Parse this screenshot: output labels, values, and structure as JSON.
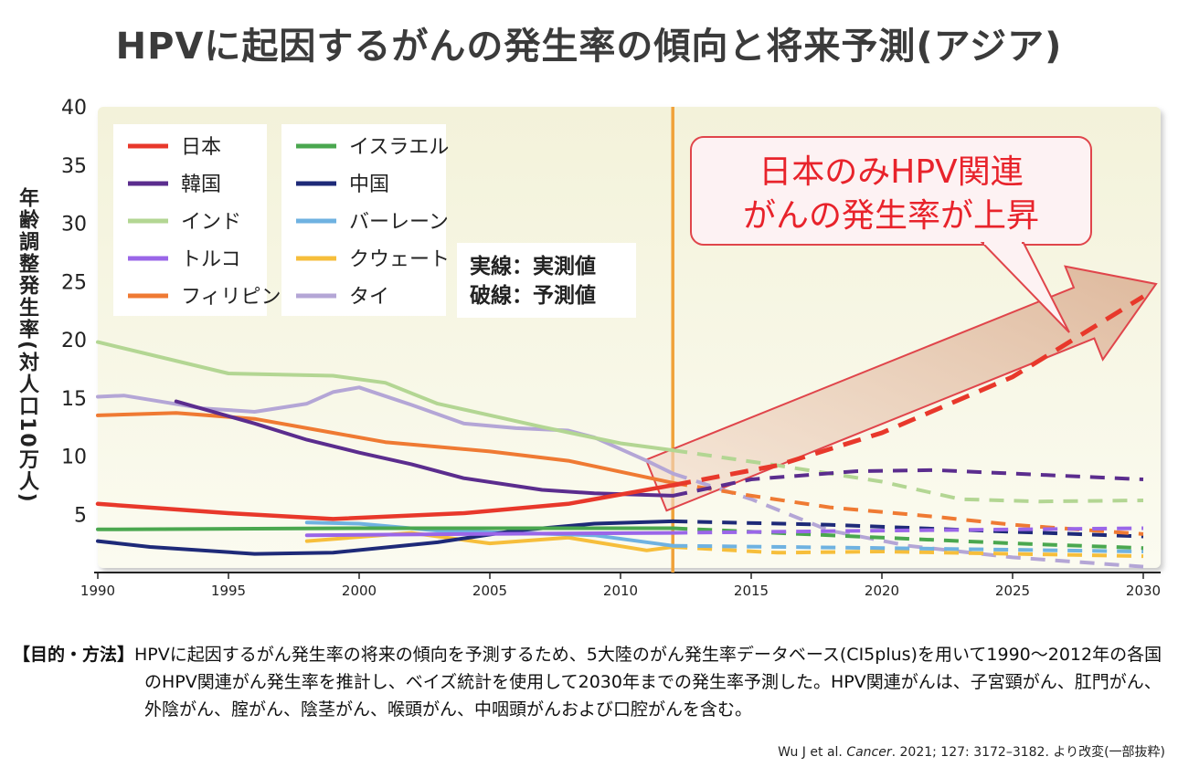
{
  "title": "HPVに起因するがんの発生率の傾向と将来予測(アジア)",
  "ylabel": "年齢調整発生率(対人口10万人)",
  "description": {
    "heading": "【目的・方法】",
    "text": "HPVに起因するがん発生率の将来の傾向を予測するため、5大陸のがん発生率データベース(CI5plus)を用いて1990～2012年の各国のHPV関連がん発生率を推計し、ベイズ統計を使用して2030年までの発生率予測した。HPV関連がんは、子宮頸がん、肛門がん、外陰がん、腟がん、陰茎がん、喉頭がん、中咽頭がんおよび口腔がんを含む。"
  },
  "citation": {
    "authors": "Wu J et al.",
    "journal": "Cancer",
    "rest": ". 2021; 127: 3172–3182. より改変(一部抜粋)"
  },
  "chart_data": {
    "type": "line",
    "xlim": [
      1990,
      2030
    ],
    "ylim": [
      0,
      40
    ],
    "x_ticks": [
      1990,
      1995,
      2000,
      2005,
      2010,
      2015,
      2020,
      2025,
      2030
    ],
    "y_ticks": [
      5,
      10,
      15,
      20,
      25,
      30,
      35,
      40
    ],
    "ylabel": "年齢調整発生率(対人口10万人)",
    "divider_year": 2012,
    "legend_note": [
      "実線：実測値",
      "破線：予測値"
    ],
    "annotation": {
      "text_line1": "日本のみHPV関連",
      "text_line2": "がんの発生率が上昇",
      "arrow_from": [
        2012,
        7.5
      ],
      "arrow_to": [
        2030,
        24
      ]
    },
    "series": [
      {
        "name": "日本",
        "color": "#e8382b",
        "observed": [
          [
            1990,
            5.9
          ],
          [
            1995,
            5.1
          ],
          [
            1999,
            4.6
          ],
          [
            2004,
            5.1
          ],
          [
            2008,
            5.9
          ],
          [
            2012,
            7.5
          ]
        ],
        "predicted": [
          [
            2012,
            7.5
          ],
          [
            2016,
            9.2
          ],
          [
            2020,
            12.0
          ],
          [
            2025,
            16.8
          ],
          [
            2030,
            23.7
          ]
        ]
      },
      {
        "name": "韓国",
        "color": "#5b2d8e",
        "observed": [
          [
            1993,
            14.7
          ],
          [
            1996,
            12.8
          ],
          [
            1998,
            11.4
          ],
          [
            2000,
            10.3
          ],
          [
            2002,
            9.3
          ],
          [
            2004,
            8.1
          ],
          [
            2007,
            7.1
          ],
          [
            2009,
            6.8
          ],
          [
            2012,
            6.6
          ]
        ],
        "predicted": [
          [
            2012,
            6.6
          ],
          [
            2015,
            8.0
          ],
          [
            2019,
            8.7
          ],
          [
            2022,
            8.8
          ],
          [
            2025,
            8.5
          ],
          [
            2030,
            8.0
          ]
        ]
      },
      {
        "name": "インド",
        "color": "#b3d693",
        "observed": [
          [
            1990,
            19.8
          ],
          [
            1995,
            17.1
          ],
          [
            1999,
            16.9
          ],
          [
            2001,
            16.3
          ],
          [
            2003,
            14.5
          ],
          [
            2007,
            12.5
          ],
          [
            2010,
            11.1
          ],
          [
            2012,
            10.5
          ]
        ],
        "predicted": [
          [
            2012,
            10.5
          ],
          [
            2016,
            9.2
          ],
          [
            2020,
            7.8
          ],
          [
            2023,
            6.3
          ],
          [
            2026,
            6.1
          ],
          [
            2030,
            6.2
          ]
        ]
      },
      {
        "name": "トルコ",
        "color": "#9a66e8",
        "observed": [
          [
            1998,
            3.2
          ],
          [
            2004,
            3.3
          ],
          [
            2012,
            3.4
          ]
        ],
        "predicted": [
          [
            2012,
            3.4
          ],
          [
            2020,
            3.6
          ],
          [
            2025,
            3.7
          ],
          [
            2030,
            3.8
          ]
        ]
      },
      {
        "name": "フィリピン",
        "color": "#ef7a33",
        "observed": [
          [
            1990,
            13.5
          ],
          [
            1993,
            13.7
          ],
          [
            1996,
            13.2
          ],
          [
            1999,
            12.0
          ],
          [
            2001,
            11.2
          ],
          [
            2005,
            10.4
          ],
          [
            2008,
            9.6
          ],
          [
            2012,
            7.7
          ]
        ],
        "predicted": [
          [
            2012,
            7.7
          ],
          [
            2015,
            6.6
          ],
          [
            2018,
            5.6
          ],
          [
            2022,
            4.8
          ],
          [
            2025,
            4.1
          ],
          [
            2030,
            3.3
          ]
        ]
      },
      {
        "name": "イスラエル",
        "color": "#4aa74f",
        "observed": [
          [
            1990,
            3.7
          ],
          [
            2000,
            3.8
          ],
          [
            2012,
            3.8
          ]
        ],
        "predicted": [
          [
            2012,
            3.8
          ],
          [
            2020,
            3.0
          ],
          [
            2025,
            2.5
          ],
          [
            2030,
            2.1
          ]
        ]
      },
      {
        "name": "中国",
        "color": "#1e2a78",
        "observed": [
          [
            1990,
            2.7
          ],
          [
            1992,
            2.2
          ],
          [
            1996,
            1.6
          ],
          [
            1999,
            1.7
          ],
          [
            2003,
            2.6
          ],
          [
            2006,
            3.6
          ],
          [
            2009,
            4.2
          ],
          [
            2012,
            4.4
          ]
        ],
        "predicted": [
          [
            2012,
            4.4
          ],
          [
            2018,
            4.1
          ],
          [
            2025,
            3.5
          ],
          [
            2030,
            3.1
          ]
        ]
      },
      {
        "name": "バーレーン",
        "color": "#6fb2e1",
        "observed": [
          [
            1998,
            4.3
          ],
          [
            2000,
            4.2
          ],
          [
            2003,
            3.6
          ],
          [
            2009,
            3.2
          ],
          [
            2012,
            2.3
          ]
        ],
        "predicted": [
          [
            2012,
            2.3
          ],
          [
            2020,
            2.1
          ],
          [
            2030,
            1.8
          ]
        ]
      },
      {
        "name": "クウェート",
        "color": "#f6be3b",
        "observed": [
          [
            1998,
            2.7
          ],
          [
            2002,
            3.4
          ],
          [
            2005,
            2.5
          ],
          [
            2008,
            3.0
          ],
          [
            2011,
            1.9
          ],
          [
            2012,
            2.2
          ]
        ],
        "predicted": [
          [
            2012,
            2.2
          ],
          [
            2016,
            1.7
          ],
          [
            2020,
            1.8
          ],
          [
            2030,
            1.4
          ]
        ]
      },
      {
        "name": "タイ",
        "color": "#b4a6d6",
        "observed": [
          [
            1990,
            15.1
          ],
          [
            1991,
            15.2
          ],
          [
            1994,
            14.1
          ],
          [
            1996,
            13.8
          ],
          [
            1998,
            14.5
          ],
          [
            1999,
            15.5
          ],
          [
            2000,
            15.9
          ],
          [
            2002,
            14.4
          ],
          [
            2004,
            12.8
          ],
          [
            2006,
            12.4
          ],
          [
            2008,
            12.2
          ],
          [
            2009,
            11.6
          ],
          [
            2011,
            9.6
          ],
          [
            2012,
            8.5
          ]
        ],
        "predicted": [
          [
            2012,
            8.5
          ],
          [
            2015,
            6.3
          ],
          [
            2018,
            3.6
          ],
          [
            2021,
            2.3
          ],
          [
            2025,
            1.3
          ],
          [
            2030,
            0.5
          ]
        ]
      }
    ]
  }
}
